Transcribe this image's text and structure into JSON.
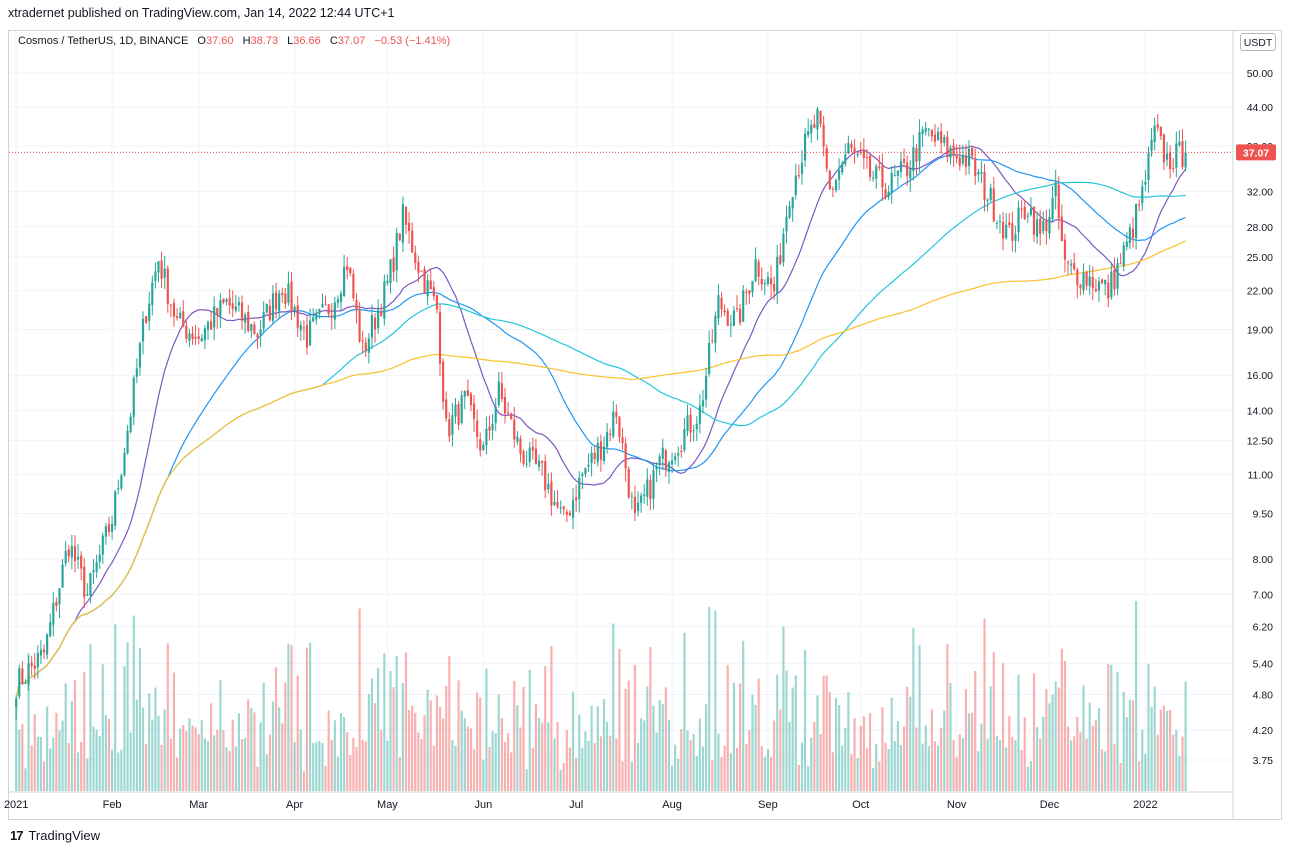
{
  "caption": "xtradernet published on TradingView.com, Jan 14, 2022 12:44 UTC+1",
  "legend": {
    "symbol": "Cosmos / TetherUS, 1D, BINANCE",
    "o_label": "O",
    "o_value": "37.60",
    "h_label": "H",
    "h_value": "38.73",
    "l_label": "L",
    "l_value": "36.66",
    "c_label": "C",
    "c_value": "37.07",
    "change": "−0.53 (−1.41%)"
  },
  "currency_badge": "USDT",
  "brand": {
    "logo": "17",
    "name": "TradingView"
  },
  "colors": {
    "up": "#26a69a",
    "down": "#ef5350",
    "ma_purple": "#7e57c2",
    "ma_blue": "#2196f3",
    "ma_cyan": "#26c6da",
    "ma_yellow": "#fbc02d",
    "grid": "#f0f3fa"
  },
  "chart_data": {
    "type": "candlestick",
    "scale": "log",
    "y_ticks": [
      "50.00",
      "44.00",
      "38.00",
      "32.00",
      "28.00",
      "25.00",
      "22.00",
      "19.00",
      "16.00",
      "14.00",
      "12.50",
      "11.00",
      "9.50",
      "8.00",
      "7.00",
      "6.20",
      "5.40",
      "4.80",
      "4.20",
      "3.75"
    ],
    "x_ticks": [
      "2021",
      "Feb",
      "Mar",
      "Apr",
      "May",
      "Jun",
      "Jul",
      "Aug",
      "Sep",
      "Oct",
      "Nov",
      "Dec",
      "2022"
    ],
    "last_price": "37.07",
    "anchors": [
      [
        "2021-01-01",
        5.0
      ],
      [
        "2021-01-10",
        5.6
      ],
      [
        "2021-01-18",
        8.5
      ],
      [
        "2021-01-24",
        7.0
      ],
      [
        "2021-02-01",
        9.3
      ],
      [
        "2021-02-07",
        14.0
      ],
      [
        "2021-02-12",
        20.5
      ],
      [
        "2021-02-16",
        24.8
      ],
      [
        "2021-02-22",
        19.5
      ],
      [
        "2021-03-01",
        18.5
      ],
      [
        "2021-03-10",
        21.0
      ],
      [
        "2021-03-20",
        18.8
      ],
      [
        "2021-03-28",
        22.5
      ],
      [
        "2021-04-05",
        18.5
      ],
      [
        "2021-04-13",
        21.0
      ],
      [
        "2021-04-18",
        24.5
      ],
      [
        "2021-04-23",
        17.5
      ],
      [
        "2021-05-01",
        22.5
      ],
      [
        "2021-05-06",
        29.0
      ],
      [
        "2021-05-12",
        23.5
      ],
      [
        "2021-05-17",
        20.5
      ],
      [
        "2021-05-20",
        13.0
      ],
      [
        "2021-05-26",
        14.5
      ],
      [
        "2021-06-01",
        12.0
      ],
      [
        "2021-06-06",
        15.0
      ],
      [
        "2021-06-13",
        12.0
      ],
      [
        "2021-06-20",
        11.0
      ],
      [
        "2021-06-27",
        9.2
      ],
      [
        "2021-07-03",
        11.0
      ],
      [
        "2021-07-10",
        12.5
      ],
      [
        "2021-07-14",
        14.0
      ],
      [
        "2021-07-20",
        9.2
      ],
      [
        "2021-07-28",
        11.5
      ],
      [
        "2021-08-03",
        12.5
      ],
      [
        "2021-08-10",
        14.0
      ],
      [
        "2021-08-16",
        21.0
      ],
      [
        "2021-08-22",
        19.5
      ],
      [
        "2021-08-28",
        24.5
      ],
      [
        "2021-09-03",
        22.0
      ],
      [
        "2021-09-08",
        32.0
      ],
      [
        "2021-09-13",
        38.0
      ],
      [
        "2021-09-17",
        42.0
      ],
      [
        "2021-09-21",
        32.0
      ],
      [
        "2021-09-27",
        37.5
      ],
      [
        "2021-10-04",
        34.0
      ],
      [
        "2021-10-10",
        32.5
      ],
      [
        "2021-10-16",
        35.0
      ],
      [
        "2021-10-22",
        40.0
      ],
      [
        "2021-10-30",
        37.0
      ],
      [
        "2021-11-05",
        36.0
      ],
      [
        "2021-11-12",
        31.0
      ],
      [
        "2021-11-18",
        27.0
      ],
      [
        "2021-11-24",
        30.5
      ],
      [
        "2021-11-28",
        27.0
      ],
      [
        "2021-12-03",
        31.5
      ],
      [
        "2021-12-06",
        24.0
      ],
      [
        "2021-12-14",
        23.0
      ],
      [
        "2021-12-20",
        22.0
      ],
      [
        "2021-12-26",
        26.0
      ],
      [
        "2021-12-31",
        31.5
      ],
      [
        "2022-01-04",
        40.0
      ],
      [
        "2022-01-08",
        36.0
      ],
      [
        "2022-01-14",
        37.07
      ]
    ]
  }
}
